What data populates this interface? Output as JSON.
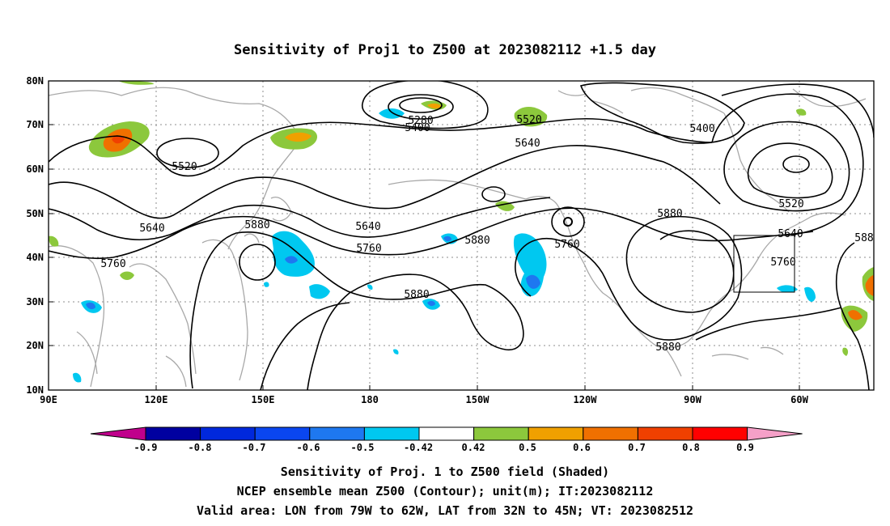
{
  "title": "Sensitivity of Proj1 to Z500 at 2023082112 +1.5 day",
  "map": {
    "lon_labels": [
      "90E",
      "120E",
      "150E",
      "180",
      "150W",
      "120W",
      "90W",
      "60W"
    ],
    "lat_labels": [
      "10N",
      "20N",
      "30N",
      "40N",
      "50N",
      "60N",
      "70N",
      "80N"
    ],
    "contour_labels": [
      "5280",
      "5400",
      "5520",
      "5400",
      "5640",
      "5520",
      "5640",
      "5640",
      "5520",
      "5640",
      "5760",
      "5880",
      "5760",
      "5880",
      "5880",
      "5760",
      "5880",
      "5760",
      "5880",
      "588"
    ]
  },
  "colorbar": {
    "labels": [
      "-0.9",
      "-0.8",
      "-0.7",
      "-0.6",
      "-0.5",
      "-0.42",
      "0.42",
      "0.5",
      "0.6",
      "0.7",
      "0.8",
      "0.9"
    ],
    "colors": [
      "#c0008c",
      "#0000a0",
      "#0028dc",
      "#0a46f0",
      "#1e78f0",
      "#00c8f0",
      "#ffffff",
      "#8cc83c",
      "#f0a000",
      "#f07000",
      "#f04000",
      "#ff0000",
      "#f5a0c8"
    ]
  },
  "captions": [
    "Sensitivity of Proj. 1 to Z500 field (Shaded)",
    "NCEP ensemble mean Z500 (Contour); unit(m); IT:2023082112",
    "Valid area: LON from 79W to 62W, LAT from 32N to 45N; VT: 2023082512"
  ]
}
